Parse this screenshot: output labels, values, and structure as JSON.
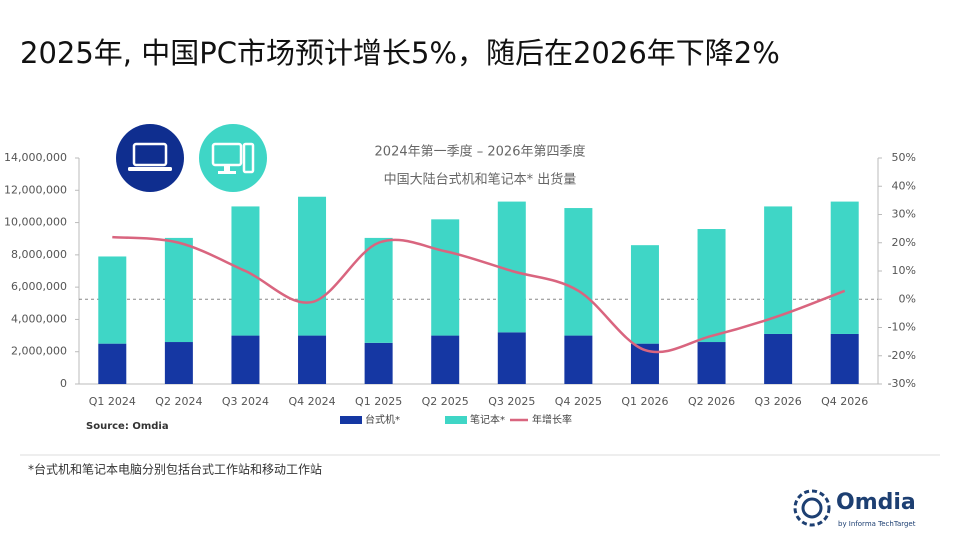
{
  "chart_data": {
    "type": "bar",
    "title": "2025年, 中国PC市场预计增长5%，随后在2026年下降2%",
    "chart_title": [
      "2024年第一季度 – 2026年第四季度",
      "中国大陆台式机和笔记本* 出货量"
    ],
    "categories": [
      "Q1 2024",
      "Q2 2024",
      "Q3 2024",
      "Q4 2024",
      "Q1 2025",
      "Q2 2025",
      "Q3 2025",
      "Q4 2025",
      "Q1 2026",
      "Q2 2026",
      "Q3 2026",
      "Q4 2026"
    ],
    "series": [
      {
        "name": "台式机*",
        "type": "bar",
        "color": "#1537a3",
        "values": [
          2500000,
          2600000,
          3000000,
          3000000,
          2550000,
          3000000,
          3200000,
          3000000,
          2500000,
          2600000,
          3100000,
          3100000
        ]
      },
      {
        "name": "笔记本*",
        "type": "bar",
        "color": "#3fd6c6",
        "values": [
          5400000,
          6450000,
          8000000,
          8600000,
          6500000,
          7200000,
          8100000,
          7900000,
          6100000,
          7000000,
          7900000,
          8200000
        ]
      },
      {
        "name": "年增长率",
        "type": "line",
        "axis": "y2",
        "color": "#d9657f",
        "values": [
          22,
          20,
          10,
          -1,
          20,
          17,
          10,
          3,
          -18,
          -13,
          -6,
          3
        ]
      }
    ],
    "stacked": true,
    "ylim": [
      0,
      14000000
    ],
    "yticks": [
      0,
      {
        "value": 2000000,
        "label": "2,000,000"
      },
      {
        "value": 4000000,
        "label": "4,000,000"
      },
      {
        "value": 6000000,
        "label": "6,000,000"
      },
      {
        "value": 8000000,
        "label": "8,000,000"
      },
      {
        "value": 10000000,
        "label": "10,000,000"
      },
      {
        "value": 12000000,
        "label": "12,000,000"
      },
      {
        "value": 14000000,
        "label": "14,000,000"
      }
    ],
    "y2lim": [
      -30,
      50
    ],
    "y2ticks": [
      {
        "value": -30,
        "label": "-30%"
      },
      {
        "value": -20,
        "label": "-20%"
      },
      {
        "value": -10,
        "label": "-10%"
      },
      {
        "value": 0,
        "label": "0%"
      },
      {
        "value": 10,
        "label": "10%"
      },
      {
        "value": 20,
        "label": "20%"
      },
      {
        "value": 30,
        "label": "30%"
      },
      {
        "value": 40,
        "label": "40%"
      },
      {
        "value": 50,
        "label": "50%"
      }
    ],
    "reference_line": 0,
    "source": "Source: Omdia",
    "footnote": "*台式机和笔记本电脑分别包括台式工作站和移动工作站",
    "logo": {
      "name": "Omdia",
      "tagline": "by Informa TechTarget"
    }
  }
}
